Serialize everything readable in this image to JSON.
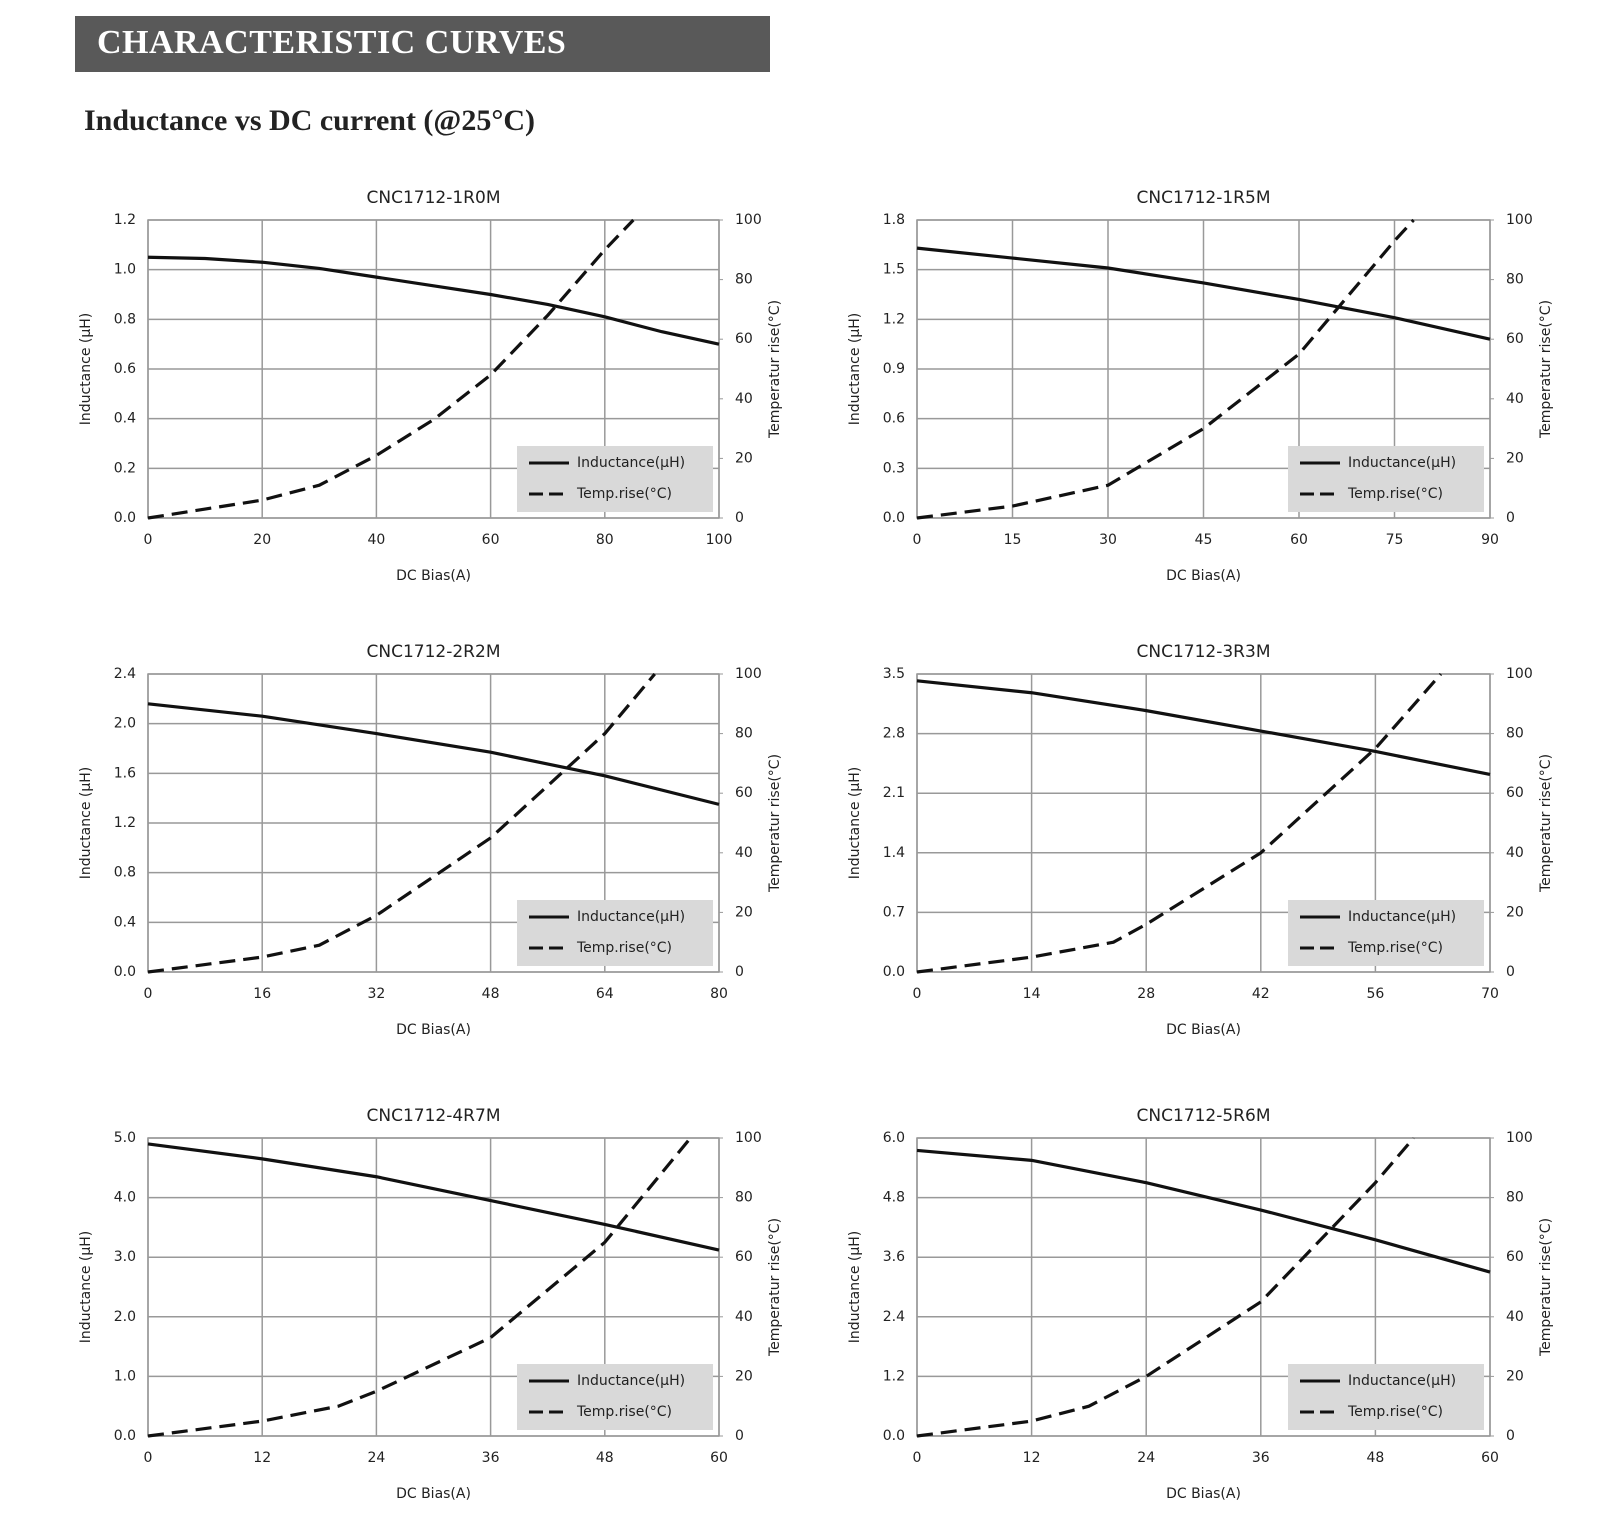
{
  "header": {
    "title": "CHARACTERISTIC CURVES",
    "subtitle": "Inductance vs DC current (@25°C)"
  },
  "chart_data": [
    {
      "type": "line",
      "title": "CNC1712-1R0M",
      "xlabel": "DC Bias(A)",
      "ylabel": "Inductance (μH)",
      "y2label": "Temperatur rise(°C)",
      "xlim": [
        0,
        100
      ],
      "xticks": [
        0,
        20,
        40,
        60,
        80,
        100
      ],
      "ylim": [
        0,
        1.2
      ],
      "yticks": [
        {
          "value": 0,
          "label": "0.0"
        },
        0.2,
        0.4,
        0.6,
        0.8,
        {
          "value": 1,
          "label": "1.0"
        },
        1.2
      ],
      "y2lim": [
        0,
        100
      ],
      "y2ticks": [
        0,
        20,
        40,
        60,
        80,
        100
      ],
      "grid": true,
      "legend": "lower right",
      "series": [
        {
          "name": "Inductance(μH)",
          "color": "#111111",
          "dash": "solid",
          "x": [
            0,
            10,
            20,
            30,
            40,
            50,
            60,
            70,
            80,
            90,
            100
          ],
          "values": [
            1.05,
            1.045,
            1.03,
            1.005,
            0.97,
            0.935,
            0.9,
            0.86,
            0.81,
            0.75,
            0.7
          ]
        },
        {
          "name": "Temp.rise(°C)",
          "color": "#111111",
          "dash": "dashed",
          "axis": "y2",
          "x": [
            0,
            10,
            20,
            30,
            40,
            50,
            60,
            70,
            80,
            85
          ],
          "values": [
            0,
            3,
            6,
            11,
            21,
            33,
            48,
            68,
            90,
            100
          ]
        }
      ]
    },
    {
      "type": "line",
      "title": "CNC1712-1R5M",
      "xlabel": "DC Bias(A)",
      "ylabel": "Inductance (μH)",
      "y2label": "Temperatur rise(°C)",
      "xlim": [
        0,
        90
      ],
      "xticks": [
        0,
        15,
        30,
        45,
        60,
        75,
        90
      ],
      "ylim": [
        0,
        1.8
      ],
      "yticks": [
        {
          "value": 0,
          "label": "0.0"
        },
        0.3,
        0.6,
        0.9,
        1.2,
        1.5,
        1.8
      ],
      "y2lim": [
        0,
        100
      ],
      "y2ticks": [
        0,
        20,
        40,
        60,
        80,
        100
      ],
      "grid": true,
      "legend": "lower right",
      "series": [
        {
          "name": "Inductance(μH)",
          "color": "#111111",
          "dash": "solid",
          "x": [
            0,
            15,
            30,
            45,
            60,
            75,
            90
          ],
          "values": [
            1.63,
            1.57,
            1.51,
            1.42,
            1.32,
            1.21,
            1.08
          ]
        },
        {
          "name": "Temp.rise(°C)",
          "color": "#111111",
          "dash": "dashed",
          "axis": "y2",
          "x": [
            0,
            15,
            30,
            45,
            60,
            75,
            78
          ],
          "values": [
            0,
            4,
            11,
            30,
            55,
            93,
            100
          ]
        }
      ]
    },
    {
      "type": "line",
      "title": "CNC1712-2R2M",
      "xlabel": "DC Bias(A)",
      "ylabel": "Inductance (μH)",
      "y2label": "Temperatur rise(°C)",
      "xlim": [
        0,
        80
      ],
      "xticks": [
        0,
        16,
        32,
        48,
        64,
        80
      ],
      "ylim": [
        0,
        2.4
      ],
      "yticks": [
        {
          "value": 0,
          "label": "0.0"
        },
        0.4,
        0.8,
        1.2,
        1.6,
        {
          "value": 2,
          "label": "2.0"
        },
        2.4
      ],
      "y2lim": [
        0,
        100
      ],
      "y2ticks": [
        0,
        20,
        40,
        60,
        80,
        100
      ],
      "grid": true,
      "legend": "lower right",
      "series": [
        {
          "name": "Inductance(μH)",
          "color": "#111111",
          "dash": "solid",
          "x": [
            0,
            16,
            32,
            48,
            64,
            80
          ],
          "values": [
            2.16,
            2.06,
            1.92,
            1.77,
            1.58,
            1.35
          ]
        },
        {
          "name": "Temp.rise(°C)",
          "color": "#111111",
          "dash": "dashed",
          "axis": "y2",
          "x": [
            0,
            16,
            24,
            32,
            48,
            64,
            71
          ],
          "values": [
            0,
            5,
            9,
            19,
            45,
            80,
            100
          ]
        }
      ]
    },
    {
      "type": "line",
      "title": "CNC1712-3R3M",
      "xlabel": "DC Bias(A)",
      "ylabel": "Inductance (μH)",
      "y2label": "Temperatur rise(°C)",
      "xlim": [
        0,
        70
      ],
      "xticks": [
        0,
        14,
        28,
        42,
        56,
        70
      ],
      "ylim": [
        0,
        3.5
      ],
      "yticks": [
        {
          "value": 0,
          "label": "0.0"
        },
        0.7,
        1.4,
        2.1,
        2.8,
        3.5
      ],
      "y2lim": [
        0,
        100
      ],
      "y2ticks": [
        0,
        20,
        40,
        60,
        80,
        100
      ],
      "grid": true,
      "legend": "lower right",
      "series": [
        {
          "name": "Inductance(μH)",
          "color": "#111111",
          "dash": "solid",
          "x": [
            0,
            14,
            28,
            42,
            56,
            70
          ],
          "values": [
            3.42,
            3.28,
            3.07,
            2.83,
            2.59,
            2.32
          ]
        },
        {
          "name": "Temp.rise(°C)",
          "color": "#111111",
          "dash": "dashed",
          "axis": "y2",
          "x": [
            0,
            14,
            24,
            28,
            42,
            56,
            64
          ],
          "values": [
            0,
            5,
            10,
            16,
            40,
            75,
            100
          ]
        }
      ]
    },
    {
      "type": "line",
      "title": "CNC1712-4R7M",
      "xlabel": "DC Bias(A)",
      "ylabel": "Inductance (μH)",
      "y2label": "Temperatur rise(°C)",
      "xlim": [
        0,
        60
      ],
      "xticks": [
        0,
        12,
        24,
        36,
        48,
        60
      ],
      "ylim": [
        0,
        5
      ],
      "yticks": [
        {
          "value": 0,
          "label": "0.0"
        },
        {
          "value": 1,
          "label": "1.0"
        },
        {
          "value": 2,
          "label": "2.0"
        },
        {
          "value": 3,
          "label": "3.0"
        },
        {
          "value": 4,
          "label": "4.0"
        },
        {
          "value": 5,
          "label": "5.0"
        }
      ],
      "y2lim": [
        0,
        100
      ],
      "y2ticks": [
        0,
        20,
        40,
        60,
        80,
        100
      ],
      "grid": true,
      "legend": "lower right",
      "series": [
        {
          "name": "Inductance(μH)",
          "color": "#111111",
          "dash": "solid",
          "x": [
            0,
            12,
            24,
            36,
            48,
            60
          ],
          "values": [
            4.9,
            4.65,
            4.35,
            3.95,
            3.55,
            3.12
          ]
        },
        {
          "name": "Temp.rise(°C)",
          "color": "#111111",
          "dash": "dashed",
          "axis": "y2",
          "x": [
            0,
            12,
            20,
            24,
            36,
            48,
            57
          ],
          "values": [
            0,
            5,
            10,
            15,
            33,
            65,
            100
          ]
        }
      ]
    },
    {
      "type": "line",
      "title": "CNC1712-5R6M",
      "xlabel": "DC Bias(A)",
      "ylabel": "Inductance (μH)",
      "y2label": "Temperatur rise(°C)",
      "xlim": [
        0,
        60
      ],
      "xticks": [
        0,
        12,
        24,
        36,
        48,
        60
      ],
      "ylim": [
        0,
        6
      ],
      "yticks": [
        {
          "value": 0,
          "label": "0.0"
        },
        1.2,
        2.4,
        3.6,
        4.8,
        {
          "value": 6,
          "label": "6.0"
        }
      ],
      "y2lim": [
        0,
        100
      ],
      "y2ticks": [
        0,
        20,
        40,
        60,
        80,
        100
      ],
      "grid": true,
      "legend": "lower right",
      "series": [
        {
          "name": "Inductance(μH)",
          "color": "#111111",
          "dash": "solid",
          "x": [
            0,
            12,
            24,
            36,
            48,
            60
          ],
          "values": [
            5.75,
            5.55,
            5.1,
            4.55,
            3.95,
            3.3
          ]
        },
        {
          "name": "Temp.rise(°C)",
          "color": "#111111",
          "dash": "dashed",
          "axis": "y2",
          "x": [
            0,
            12,
            18,
            24,
            36,
            48,
            52
          ],
          "values": [
            0,
            5,
            10,
            20,
            45,
            85,
            100
          ]
        }
      ]
    }
  ]
}
